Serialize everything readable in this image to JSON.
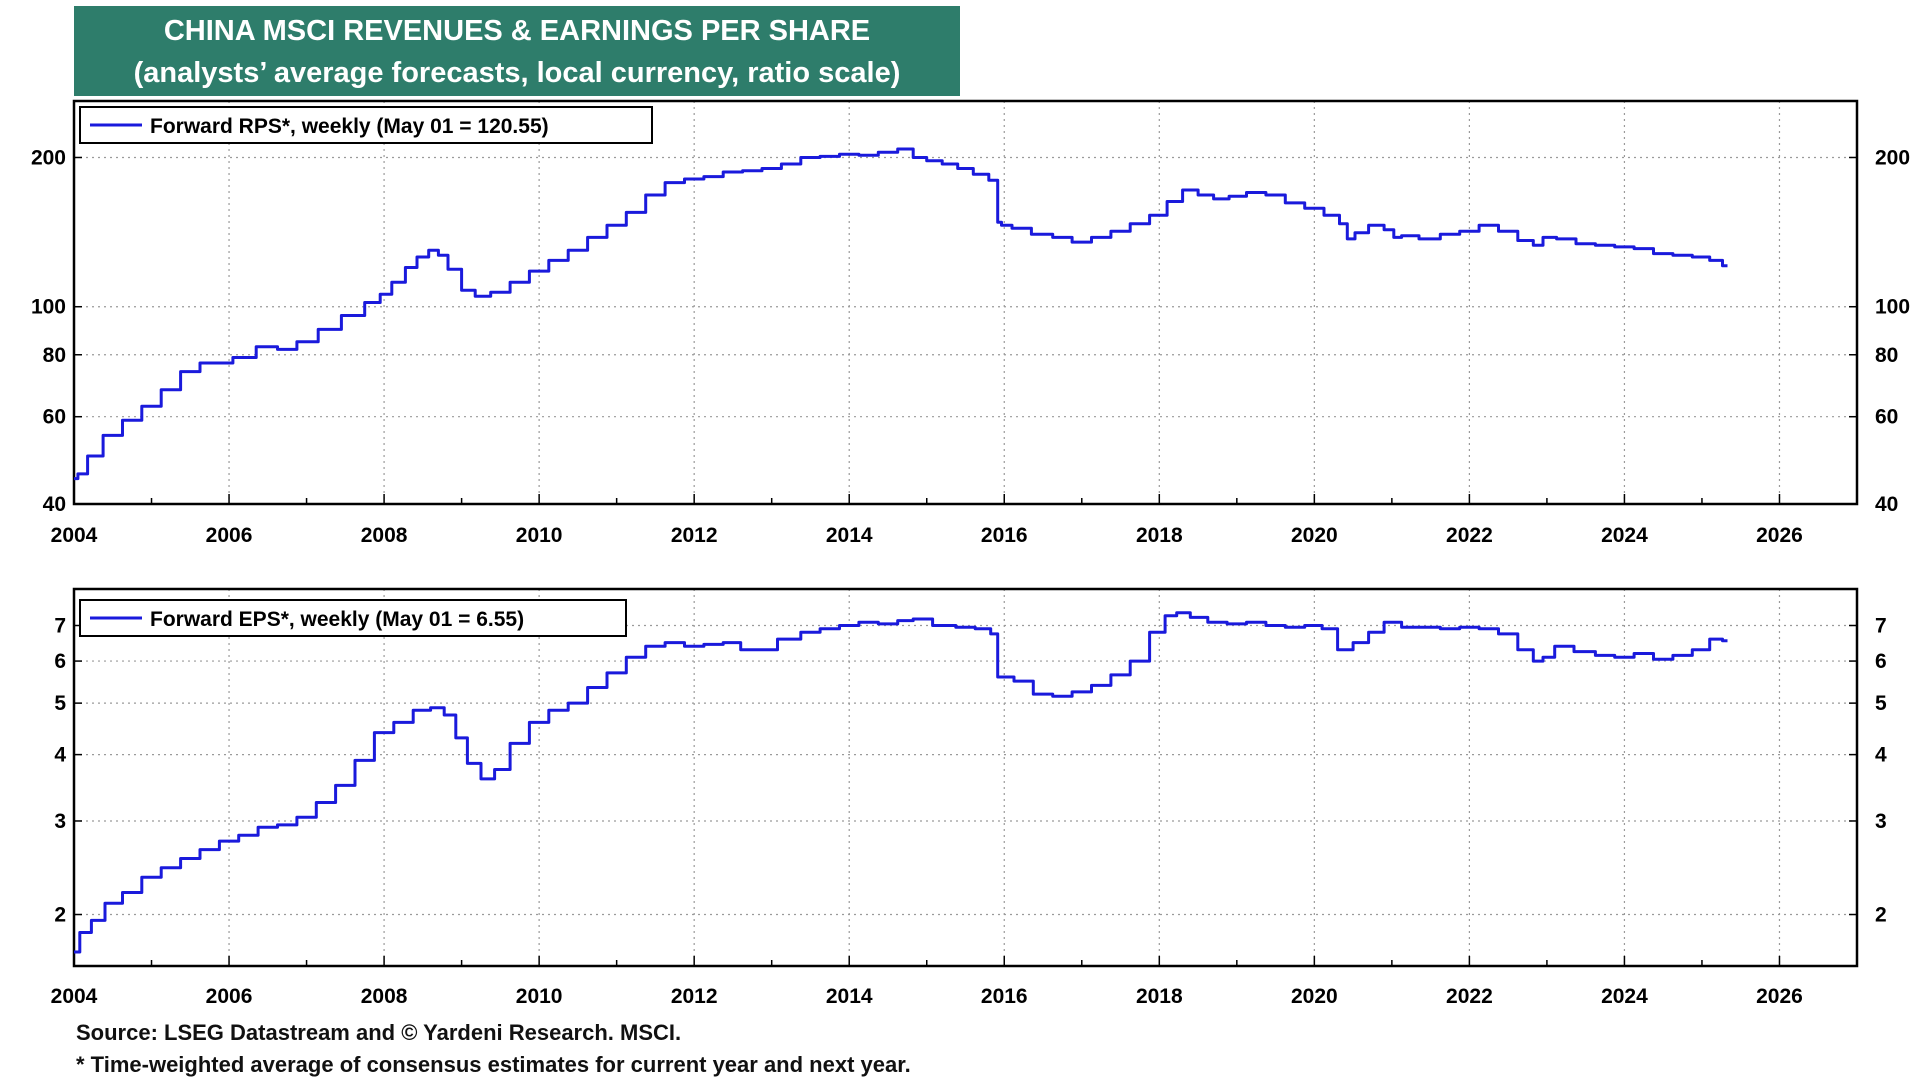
{
  "title": {
    "line1": "CHINA MSCI REVENUES & EARNINGS PER SHARE",
    "line2": "(analysts’ average forecasts, local currency, ratio scale)"
  },
  "footnotes": {
    "source": "Source: LSEG Datastream and © Yardeni Research. MSCI.",
    "note": "* Time-weighted average of consensus estimates for current year and next year."
  },
  "colors": {
    "title_bg": "#2e7d6b",
    "series": "#1a1adc",
    "grid": "#9a9a9a",
    "axis": "#000000"
  },
  "chart_data": [
    {
      "type": "line",
      "scale": "log",
      "legend": "Forward RPS*, weekly (May 01 = 120.55)",
      "legend_position": "top-left",
      "xlim": [
        2004,
        2027
      ],
      "ylim": [
        40,
        260
      ],
      "xticks": [
        "2004",
        "2006",
        "2008",
        "2010",
        "2012",
        "2014",
        "2016",
        "2018",
        "2020",
        "2022",
        "2024",
        "2026"
      ],
      "yticks": [
        "40",
        "60",
        "80",
        "100",
        "200"
      ],
      "series": [
        {
          "name": "Forward RPS*",
          "x": [
            2004.0,
            2004.1,
            2004.25,
            2004.5,
            2004.75,
            2005.0,
            2005.25,
            2005.5,
            2005.75,
            2005.9,
            2006.2,
            2006.5,
            2006.75,
            2007.0,
            2007.3,
            2007.6,
            2007.9,
            2008.0,
            2008.2,
            2008.35,
            2008.5,
            2008.65,
            2008.75,
            2008.9,
            2009.1,
            2009.25,
            2009.5,
            2009.75,
            2010.0,
            2010.25,
            2010.5,
            2010.75,
            2011.0,
            2011.25,
            2011.5,
            2011.75,
            2012.0,
            2012.25,
            2012.5,
            2012.75,
            2013.0,
            2013.25,
            2013.5,
            2013.75,
            2014.0,
            2014.25,
            2014.5,
            2014.75,
            2014.9,
            2015.1,
            2015.3,
            2015.5,
            2015.7,
            2015.9,
            2015.93,
            2016.0,
            2016.2,
            2016.5,
            2016.75,
            2017.0,
            2017.25,
            2017.5,
            2017.75,
            2018.0,
            2018.2,
            2018.4,
            2018.6,
            2018.8,
            2019.0,
            2019.25,
            2019.5,
            2019.75,
            2020.0,
            2020.25,
            2020.4,
            2020.45,
            2020.6,
            2020.8,
            2021.0,
            2021.05,
            2021.2,
            2021.5,
            2021.75,
            2022.0,
            2022.25,
            2022.5,
            2022.75,
            2022.9,
            2023.0,
            2023.25,
            2023.5,
            2023.75,
            2024.0,
            2024.25,
            2024.5,
            2024.75,
            2025.0,
            2025.2,
            2025.33
          ],
          "values": [
            45,
            46,
            50,
            55,
            59,
            63,
            68,
            74,
            77,
            77,
            79,
            83,
            82,
            85,
            90,
            96,
            102,
            106,
            112,
            120,
            126,
            130,
            127,
            119,
            108,
            105,
            107,
            112,
            118,
            124,
            130,
            138,
            146,
            155,
            168,
            178,
            181,
            183,
            187,
            188,
            190,
            194,
            200,
            201,
            203,
            202,
            205,
            208,
            200,
            197,
            194,
            190,
            185,
            180,
            148,
            146,
            144,
            140,
            138,
            135,
            138,
            142,
            147,
            153,
            163,
            172,
            168,
            165,
            167,
            170,
            168,
            162,
            158,
            153,
            147,
            137,
            141,
            146,
            143,
            138,
            139,
            137,
            140,
            142,
            146,
            142,
            136,
            133,
            138,
            137,
            134,
            133,
            132,
            131,
            128,
            127,
            126,
            124,
            121
          ]
        }
      ]
    },
    {
      "type": "line",
      "scale": "log",
      "legend": "Forward EPS*, weekly (May 01 = 6.55)",
      "legend_position": "top-left",
      "xlim": [
        2004,
        2027
      ],
      "ylim": [
        1.6,
        8.2
      ],
      "xticks": [
        "2004",
        "2006",
        "2008",
        "2010",
        "2012",
        "2014",
        "2016",
        "2018",
        "2020",
        "2022",
        "2024",
        "2026"
      ],
      "yticks": [
        "2",
        "3",
        "4",
        "5",
        "6",
        "7"
      ],
      "series": [
        {
          "name": "Forward EPS*",
          "x": [
            2004.0,
            2004.15,
            2004.3,
            2004.5,
            2004.75,
            2005.0,
            2005.25,
            2005.5,
            2005.75,
            2006.0,
            2006.25,
            2006.5,
            2006.75,
            2007.0,
            2007.25,
            2007.5,
            2007.75,
            2008.0,
            2008.25,
            2008.5,
            2008.7,
            2008.85,
            2009.0,
            2009.15,
            2009.35,
            2009.5,
            2009.75,
            2010.0,
            2010.25,
            2010.5,
            2010.75,
            2011.0,
            2011.25,
            2011.5,
            2011.75,
            2012.0,
            2012.25,
            2012.5,
            2012.7,
            2012.9,
            2013.25,
            2013.5,
            2013.75,
            2014.0,
            2014.25,
            2014.5,
            2014.75,
            2014.9,
            2015.25,
            2015.5,
            2015.75,
            2015.9,
            2015.93,
            2016.0,
            2016.25,
            2016.5,
            2016.75,
            2017.0,
            2017.25,
            2017.5,
            2017.75,
            2018.0,
            2018.15,
            2018.3,
            2018.5,
            2018.75,
            2019.0,
            2019.25,
            2019.5,
            2019.75,
            2020.0,
            2020.2,
            2020.4,
            2020.6,
            2020.8,
            2021.0,
            2021.25,
            2021.5,
            2021.75,
            2022.0,
            2022.25,
            2022.5,
            2022.75,
            2022.9,
            2023.0,
            2023.2,
            2023.5,
            2023.75,
            2024.0,
            2024.25,
            2024.5,
            2024.75,
            2025.0,
            2025.2,
            2025.33
          ],
          "values": [
            1.7,
            1.85,
            1.95,
            2.1,
            2.2,
            2.35,
            2.45,
            2.55,
            2.65,
            2.75,
            2.82,
            2.92,
            2.95,
            3.05,
            3.25,
            3.5,
            3.9,
            4.4,
            4.6,
            4.85,
            4.9,
            4.75,
            4.3,
            3.85,
            3.6,
            3.75,
            4.2,
            4.6,
            4.85,
            5.0,
            5.35,
            5.7,
            6.1,
            6.4,
            6.5,
            6.4,
            6.45,
            6.5,
            6.3,
            6.3,
            6.6,
            6.8,
            6.9,
            7.0,
            7.1,
            7.05,
            7.15,
            7.2,
            7.0,
            6.95,
            6.9,
            6.75,
            5.6,
            5.6,
            5.5,
            5.2,
            5.15,
            5.25,
            5.4,
            5.65,
            6.0,
            6.8,
            7.3,
            7.4,
            7.25,
            7.1,
            7.05,
            7.1,
            7.0,
            6.95,
            7.0,
            6.9,
            6.3,
            6.5,
            6.8,
            7.1,
            6.95,
            6.95,
            6.9,
            6.95,
            6.9,
            6.75,
            6.3,
            6.0,
            6.1,
            6.4,
            6.25,
            6.15,
            6.1,
            6.2,
            6.05,
            6.15,
            6.3,
            6.6,
            6.55
          ]
        }
      ]
    }
  ]
}
